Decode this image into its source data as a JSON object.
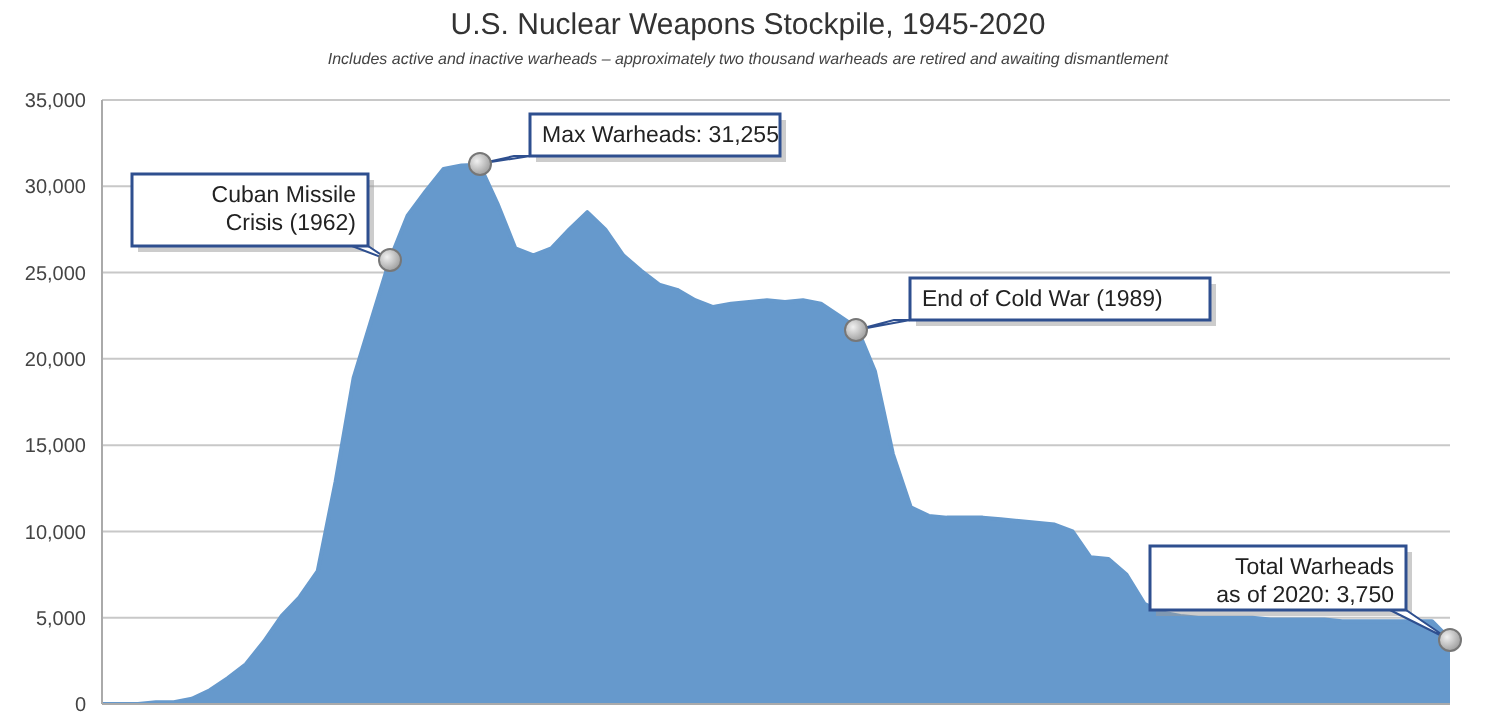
{
  "chart_data": {
    "type": "area",
    "title": "U.S. Nuclear Weapons Stockpile, 1945-2020",
    "subtitle": "Includes active and inactive warheads – approximately two thousand warheads are retired and awaiting dismantlement",
    "categories": [
      null,
      null,
      null,
      null,
      null,
      null,
      null,
      null,
      null,
      null,
      null,
      null,
      null,
      null,
      null,
      null,
      null,
      null,
      null,
      null,
      null,
      null,
      null,
      null,
      null,
      null,
      null,
      null,
      null,
      null,
      null,
      null,
      null,
      null,
      null,
      null,
      null,
      null,
      null,
      null,
      null,
      null,
      null,
      null,
      null,
      null,
      null,
      null,
      null,
      null,
      null,
      null,
      null,
      null,
      null,
      null,
      null,
      null,
      null,
      null,
      null,
      null,
      null,
      null,
      null,
      null,
      null,
      null,
      null,
      null,
      null,
      null,
      null,
      null,
      null,
      null
    ],
    "series": [
      {
        "color": "#6699cc",
        "values": [
          0,
          0,
          0,
          100,
          100,
          300,
          800,
          1500,
          2300,
          3600,
          5100,
          6200,
          7700,
          12900,
          18900,
          22300,
          25700,
          28300,
          29700,
          31000,
          31200,
          31255,
          29000,
          26400,
          26000,
          26400,
          27500,
          28500,
          27500,
          26000,
          25100,
          24300,
          24000,
          23400,
          23000,
          23200,
          23300,
          23400,
          23300,
          23400,
          23200,
          22500,
          21800,
          19300,
          14500,
          11400,
          10900,
          10800,
          10800,
          10800,
          10700,
          10600,
          10500,
          10400,
          10000,
          8500,
          8400,
          7500,
          5800,
          5300,
          5100,
          5000,
          5000,
          5000,
          5000,
          4900,
          4900,
          4900,
          4900,
          4800,
          4800,
          4800,
          4800,
          4800,
          4800,
          3750
        ]
      }
    ],
    "ylim": [
      0,
      35000
    ],
    "yticks": [
      0,
      {
        "value": 5000,
        "label": "5,000"
      },
      {
        "value": 10000,
        "label": "10,000"
      },
      {
        "value": 15000,
        "label": "15,000"
      },
      {
        "value": 20000,
        "label": "20,000"
      },
      {
        "value": 25000,
        "label": "25,000"
      },
      {
        "value": 30000,
        "label": "30,000"
      },
      {
        "value": 35000,
        "label": "35,000"
      }
    ],
    "tick_labels": "y",
    "grid": "y",
    "marker": "none",
    "annotations": [
      "Cuban Missile\nCrisis (1962)",
      "Max Warheads: 31,255",
      "End of Cold War (1989)",
      "Total Warheads\nas of 2020: 3,750"
    ]
  }
}
